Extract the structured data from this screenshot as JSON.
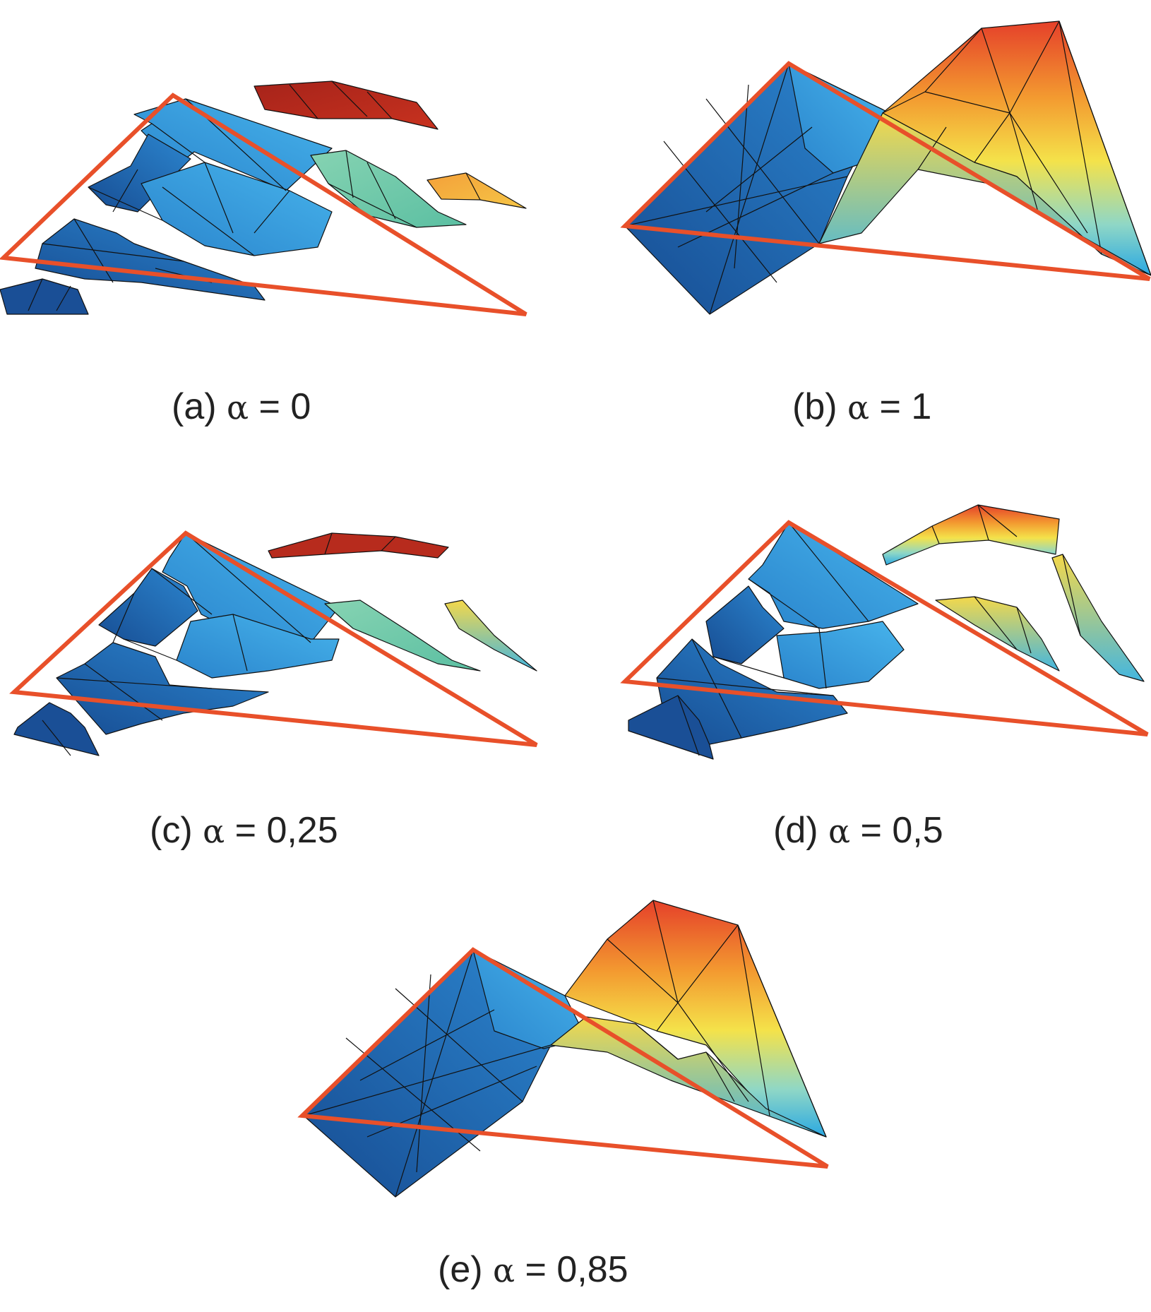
{
  "figure": {
    "panels": [
      {
        "id": "a",
        "caption_label": "(a)",
        "caption_symbol": "α",
        "caption_value": "= 0"
      },
      {
        "id": "b",
        "caption_label": "(b)",
        "caption_symbol": "α",
        "caption_value": "= 1"
      },
      {
        "id": "c",
        "caption_label": "(c)",
        "caption_symbol": "α",
        "caption_value": "= 0,25"
      },
      {
        "id": "d",
        "caption_label": "(d)",
        "caption_symbol": "α",
        "caption_value": "= 0,5"
      },
      {
        "id": "e",
        "caption_label": "(e)",
        "caption_symbol": "α",
        "caption_value": "= 0,85"
      }
    ]
  },
  "colors": {
    "domain_outline": "#e8502a",
    "deep_blue": "#1f5fa8",
    "mid_blue": "#2b8fd6",
    "light_blue": "#3aa6e4",
    "teal": "#7fcfae",
    "yellow": "#f5c842",
    "orange": "#f08a2c",
    "red": "#e6452a",
    "dark_red": "#b12a1e",
    "mesh_line": "#111111"
  }
}
